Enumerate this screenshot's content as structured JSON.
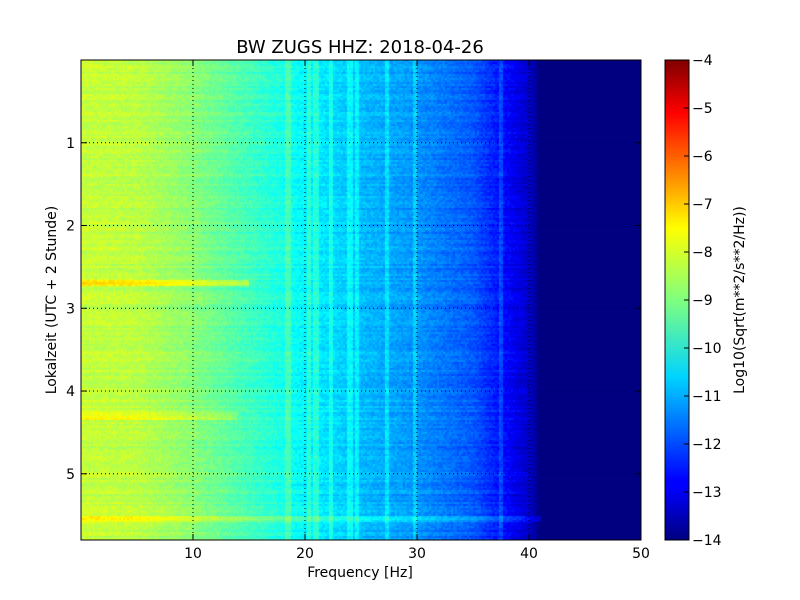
{
  "chart_data": {
    "type": "heatmap",
    "title": "BW ZUGS HHZ: 2018-04-26",
    "xlabel": "Frequency [Hz]",
    "ylabel": "Lokalzeit (UTC + 2 Stunde)",
    "xlim": [
      0,
      50
    ],
    "ylim": [
      0,
      5.8
    ],
    "y_inverted": true,
    "xticks": [
      10,
      20,
      30,
      40,
      50
    ],
    "yticks": [
      1,
      2,
      3,
      4,
      5
    ],
    "grid": true,
    "colormap": "jet",
    "colorbar": {
      "label": "Log10(Sqrt(m**2/s**2/Hz))",
      "range": [
        -14,
        -4
      ],
      "ticks": [
        -4,
        -5,
        -6,
        -7,
        -8,
        -9,
        -10,
        -11,
        -12,
        -13,
        -14
      ]
    },
    "frequency_profile_log10": [
      {
        "f": 0,
        "v": -8.3
      },
      {
        "f": 5,
        "v": -8.4
      },
      {
        "f": 10,
        "v": -8.9
      },
      {
        "f": 15,
        "v": -9.6
      },
      {
        "f": 20,
        "v": -10.3
      },
      {
        "f": 25,
        "v": -10.9
      },
      {
        "f": 30,
        "v": -11.3
      },
      {
        "f": 35,
        "v": -11.9
      },
      {
        "f": 37.5,
        "v": -12.6
      },
      {
        "f": 39,
        "v": -13.0
      },
      {
        "f": 40,
        "v": -13.3
      },
      {
        "f": 41,
        "v": -14.0
      },
      {
        "f": 50,
        "v": -14.0
      }
    ],
    "narrowband_lines_hz": [
      18.5,
      20.4,
      21.0,
      22.3,
      24.0,
      24.6,
      27.3,
      29.8,
      37.5
    ],
    "events": [
      {
        "time": 2.7,
        "f_range": [
          0,
          15
        ],
        "delta": 0.9
      },
      {
        "time": 4.3,
        "f_range": [
          0,
          14
        ],
        "delta": 0.5
      },
      {
        "time": 5.55,
        "f_range": [
          0,
          43
        ],
        "delta": 0.6
      }
    ]
  }
}
